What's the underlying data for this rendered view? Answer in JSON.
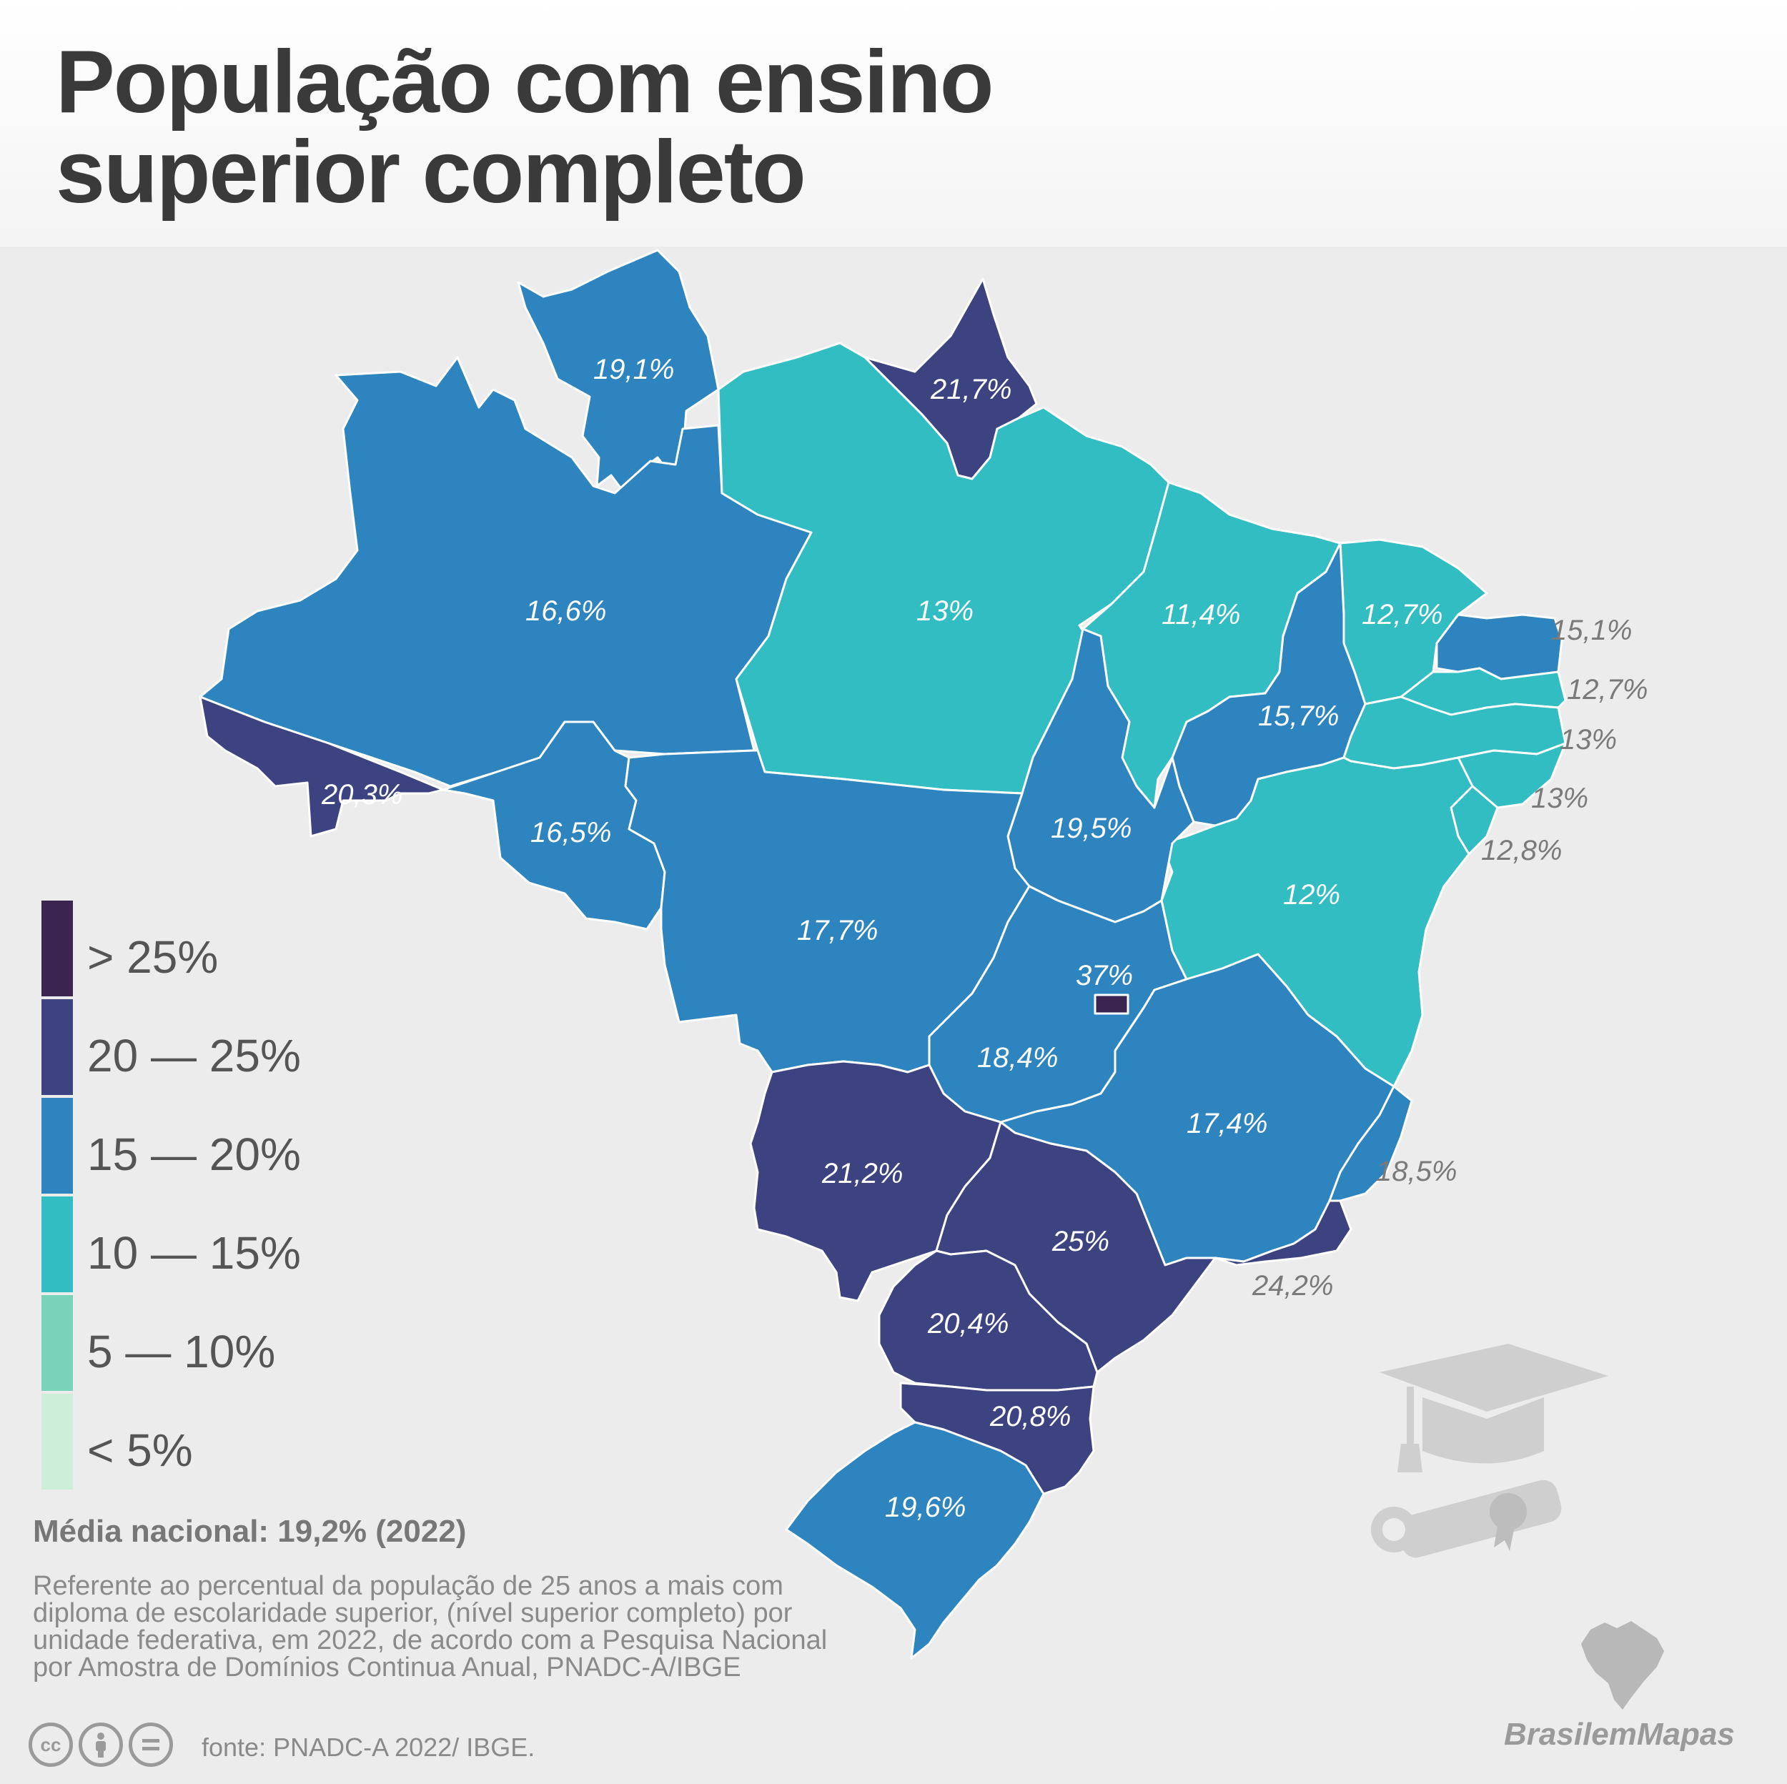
{
  "title": {
    "line1": "População com ensino",
    "line2": "superior completo"
  },
  "colors": {
    "gt25": "#3a2550",
    "c20_25": "#3d4380",
    "c15_20": "#2e84bf",
    "c10_15": "#31bdc2",
    "c5_10": "#79d3b8",
    "lt5": "#cdeed9"
  },
  "legend": [
    {
      "label": "> 25%",
      "color": "#3a2550"
    },
    {
      "label": "20 — 25%",
      "color": "#3d4380"
    },
    {
      "label": "15 — 20%",
      "color": "#2e84bf"
    },
    {
      "label": "10 — 15%",
      "color": "#31bdc2"
    },
    {
      "label": "5 — 10%",
      "color": "#79d3b8"
    },
    {
      "label": "< 5%",
      "color": "#cdeed9"
    }
  ],
  "states": [
    {
      "key": "RR",
      "value": "19,1%"
    },
    {
      "key": "AP",
      "value": "21,7%"
    },
    {
      "key": "AM",
      "value": "16,6%"
    },
    {
      "key": "PA",
      "value": "13%"
    },
    {
      "key": "MA",
      "value": "11,4%"
    },
    {
      "key": "CE",
      "value": "12,7%"
    },
    {
      "key": "RN",
      "value": "15,1%"
    },
    {
      "key": "PB",
      "value": "12,7%"
    },
    {
      "key": "PE",
      "value": "13%"
    },
    {
      "key": "AL",
      "value": "13%"
    },
    {
      "key": "SE",
      "value": "12,8%"
    },
    {
      "key": "PI",
      "value": "15,7%"
    },
    {
      "key": "AC",
      "value": "20,3%"
    },
    {
      "key": "RO",
      "value": "16,5%"
    },
    {
      "key": "TO",
      "value": "19,5%"
    },
    {
      "key": "BA",
      "value": "12%"
    },
    {
      "key": "MT",
      "value": "17,7%"
    },
    {
      "key": "DF",
      "value": "37%"
    },
    {
      "key": "GO",
      "value": "18,4%"
    },
    {
      "key": "MG",
      "value": "17,4%"
    },
    {
      "key": "ES",
      "value": "18,5%"
    },
    {
      "key": "MS",
      "value": "21,2%"
    },
    {
      "key": "SP",
      "value": "25%"
    },
    {
      "key": "RJ",
      "value": "24,2%"
    },
    {
      "key": "PR",
      "value": "20,4%"
    },
    {
      "key": "SC",
      "value": "20,8%"
    },
    {
      "key": "RS",
      "value": "19,6%"
    }
  ],
  "media_nacional": "Média nacional: 19,2% (2022)",
  "note_lines": [
    "Referente ao percentual da população de 25 anos a mais com",
    "diploma de escolaridade superior, (nível superior completo) por",
    "unidade federativa, em 2022, de acordo com a Pesquisa Nacional",
    "por Amostra de Domínios Continua Anual, PNADC-A/IBGE"
  ],
  "license_icons": [
    "cc-icon",
    "by-icon",
    "nd-icon"
  ],
  "license_glyphs": {
    "cc": "cc"
  },
  "fonte": "fonte: PNADC-A 2022/ IBGE.",
  "brand": "BrasilemMapas",
  "decor_icons": [
    "graduation-cap-icon",
    "diploma-scroll-icon",
    "brazil-map-logo-icon"
  ]
}
